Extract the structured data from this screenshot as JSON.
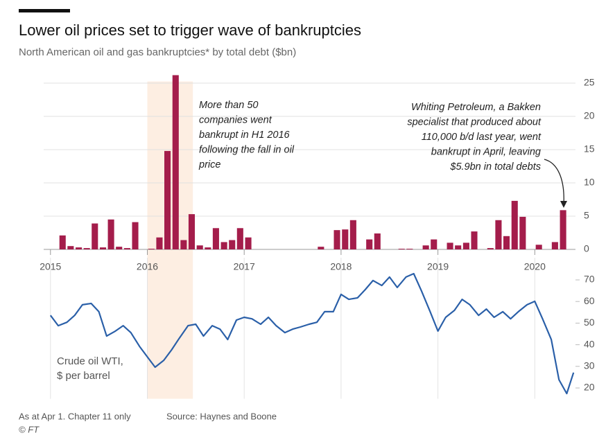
{
  "title": "Lower oil prices set to trigger wave of bankruptcies",
  "subtitle": "North American oil and gas bankruptcies* by total debt ($bn)",
  "note": "As at Apr 1. Chapter 11 only",
  "source": "Source: Haynes and Boone",
  "credit": "© FT",
  "chart_data": [
    {
      "type": "bar",
      "color": "#a41d4b",
      "x": [
        2015.042,
        2015.125,
        2015.208,
        2015.292,
        2015.375,
        2015.458,
        2015.542,
        2015.625,
        2015.708,
        2015.792,
        2015.875,
        2015.958,
        2016.042,
        2016.125,
        2016.208,
        2016.292,
        2016.375,
        2016.458,
        2016.542,
        2016.625,
        2016.708,
        2016.792,
        2016.875,
        2016.958,
        2017.042,
        2017.125,
        2017.208,
        2017.292,
        2017.375,
        2017.458,
        2017.542,
        2017.625,
        2017.708,
        2017.792,
        2017.875,
        2017.958,
        2018.042,
        2018.125,
        2018.208,
        2018.292,
        2018.375,
        2018.458,
        2018.542,
        2018.625,
        2018.708,
        2018.792,
        2018.875,
        2018.958,
        2019.042,
        2019.125,
        2019.208,
        2019.292,
        2019.375,
        2019.458,
        2019.542,
        2019.625,
        2019.708,
        2019.792,
        2019.875,
        2019.958,
        2020.042,
        2020.125,
        2020.208,
        2020.292
      ],
      "values": [
        0,
        2.1,
        0.5,
        0.3,
        0.2,
        3.9,
        0.3,
        4.5,
        0.4,
        0.2,
        4.1,
        0,
        0.1,
        1.8,
        14.8,
        26.2,
        1.4,
        5.3,
        0.6,
        0.3,
        3.2,
        1.1,
        1.4,
        3.2,
        1.8,
        0,
        0,
        0,
        0,
        0,
        0,
        0,
        0,
        0.4,
        0,
        2.9,
        3.0,
        4.4,
        0,
        1.5,
        2.4,
        0,
        0,
        0.1,
        0.1,
        0,
        0.6,
        1.5,
        0,
        1.0,
        0.6,
        1.0,
        2.7,
        0,
        0.2,
        4.4,
        2.0,
        7.3,
        4.9,
        0,
        0.7,
        0,
        1.1,
        5.9
      ],
      "xlim": [
        2014.93,
        2020.42
      ],
      "xticks": [
        2015,
        2016,
        2017,
        2018,
        2019,
        2020
      ],
      "ylim": [
        0,
        26.5
      ],
      "yticks": [
        0,
        5,
        10,
        15,
        20,
        25
      ],
      "grid": true,
      "shaded_range": [
        2016.0,
        2016.47
      ],
      "shade_color": "#fdeee2",
      "annotations": [
        {
          "lines": [
            "More than 50",
            "companies went",
            "bankrupt in H1 2016",
            "following the fall in oil",
            "price"
          ]
        },
        {
          "lines": [
            "Whiting Petroleum, a Bakken",
            "specialist that produced about",
            "110,000 b/d last year, went",
            "bankrupt in April, leaving",
            "$5.9bn in total debts"
          ]
        }
      ]
    },
    {
      "type": "line",
      "color": "#2a5fa8",
      "label_lines": [
        "Crude oil WTI,",
        "$ per barrel"
      ],
      "x": [
        2015.0,
        2015.08,
        2015.17,
        2015.25,
        2015.33,
        2015.42,
        2015.5,
        2015.58,
        2015.67,
        2015.75,
        2015.83,
        2015.92,
        2016.0,
        2016.08,
        2016.17,
        2016.25,
        2016.33,
        2016.42,
        2016.5,
        2016.58,
        2016.67,
        2016.75,
        2016.83,
        2016.92,
        2017.0,
        2017.08,
        2017.17,
        2017.25,
        2017.33,
        2017.42,
        2017.5,
        2017.58,
        2017.67,
        2017.75,
        2017.83,
        2017.92,
        2018.0,
        2018.08,
        2018.17,
        2018.25,
        2018.33,
        2018.42,
        2018.5,
        2018.58,
        2018.67,
        2018.75,
        2018.83,
        2018.92,
        2019.0,
        2019.08,
        2019.17,
        2019.25,
        2019.33,
        2019.42,
        2019.5,
        2019.58,
        2019.67,
        2019.75,
        2019.83,
        2019.92,
        2020.0,
        2020.08,
        2020.17,
        2020.25,
        2020.33,
        2020.4
      ],
      "values": [
        53.6,
        48.8,
        50.4,
        53.6,
        58.5,
        59.1,
        55.3,
        44,
        46.3,
        48.8,
        45.6,
        39.2,
        34.4,
        29.6,
        32.8,
        37.6,
        43,
        48.8,
        49.5,
        44,
        48.8,
        47.2,
        42.4,
        51.4,
        52.7,
        52,
        49.5,
        52.7,
        48.8,
        45.6,
        47.2,
        48.2,
        49.5,
        50.4,
        55.3,
        55.3,
        63.3,
        61,
        61.7,
        65.5,
        69.7,
        67.4,
        71.3,
        66.5,
        71.3,
        72.9,
        64.9,
        55.3,
        46.3,
        52.7,
        55.9,
        61,
        58.5,
        53.6,
        56.5,
        52.7,
        55.3,
        52,
        55.3,
        58.5,
        60.1,
        52,
        42.4,
        23.8,
        17.4,
        27.1
      ],
      "xlim": [
        2014.93,
        2020.42
      ],
      "ylim": [
        15,
        75
      ],
      "yticks": [
        20,
        30,
        40,
        50,
        60,
        70
      ]
    }
  ]
}
